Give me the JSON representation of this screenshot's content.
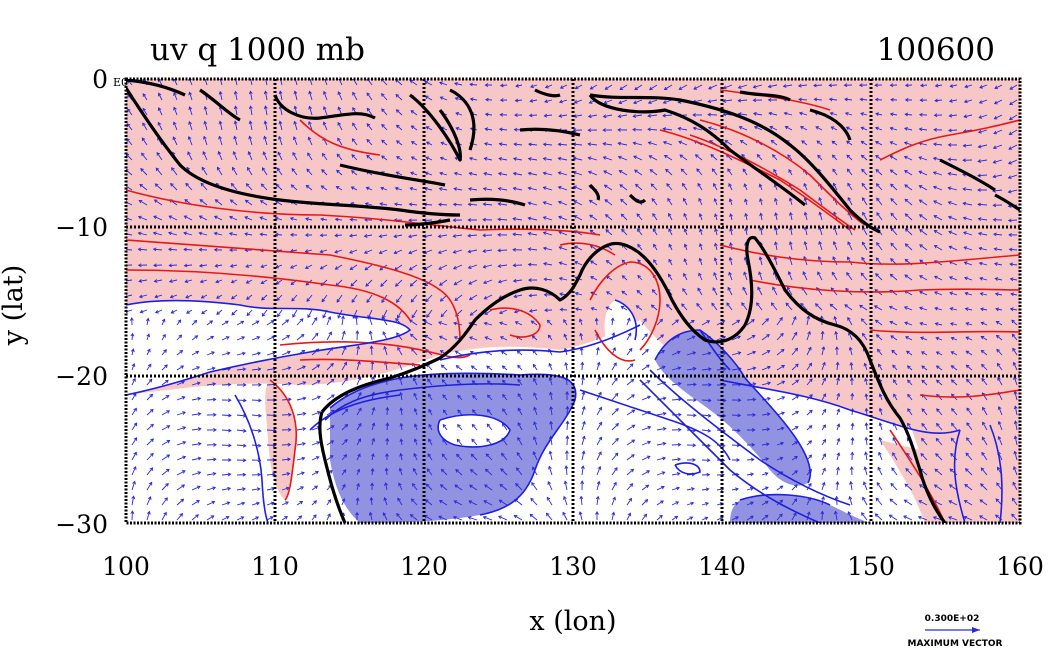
{
  "title_left": "uv  q  1000  mb",
  "title_right": "100600",
  "x_axis": {
    "label": "x (lon)",
    "ticks": [
      "100",
      "110",
      "120",
      "130",
      "140",
      "150",
      "160"
    ]
  },
  "y_axis": {
    "label": "y (lat)",
    "ticks": [
      "0",
      "−10",
      "−20",
      "−30"
    ]
  },
  "corner_tag": "E0",
  "reference_vector": {
    "value": "0.300E+02",
    "caption": "MAXIMUM VECTOR"
  },
  "map": {
    "lon_range": [
      100,
      160
    ],
    "lat_range": [
      -30,
      0
    ],
    "grid_lon": [
      110,
      120,
      130,
      140,
      150
    ],
    "grid_lat": [
      -10,
      -20
    ],
    "colors": {
      "positive_fill": "#f7c7c7",
      "negative_fill": "#8c8ce0",
      "positive_contour": "#e61919",
      "negative_contour": "#1f1fe0",
      "vector": "#2a2ad8",
      "coast": "#000000"
    }
  }
}
